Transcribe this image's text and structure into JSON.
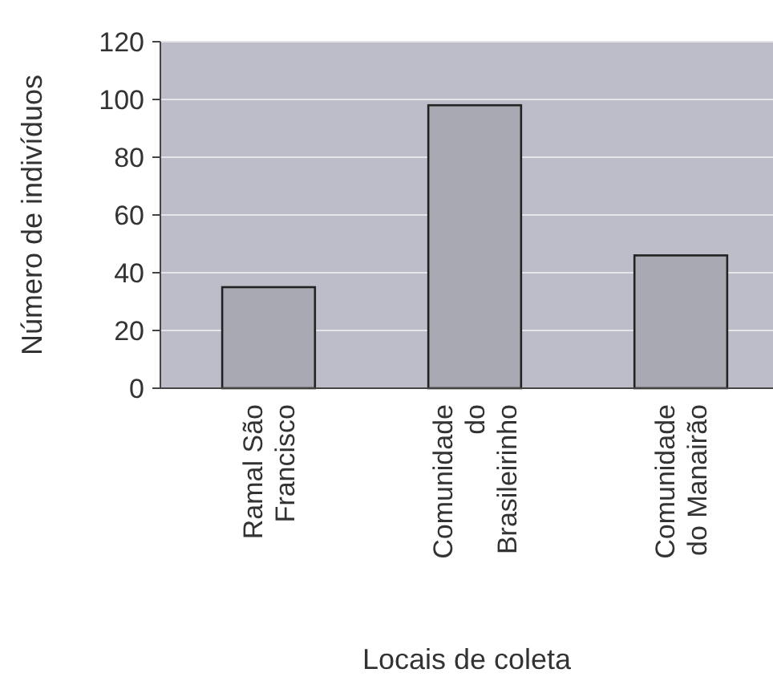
{
  "chart_data": {
    "type": "bar",
    "xlabel": "Locais de coleta",
    "ylabel": "Número de indivíduos",
    "categories": [
      "Ramal São\nFrancisco",
      "Comunidade\ndo\nBrasileirinho",
      "Comunidade\ndo Manairão"
    ],
    "values": [
      35,
      98,
      46
    ],
    "color": "#a9a9b3",
    "ylim": [
      0,
      120
    ],
    "yticks": [
      0,
      20,
      40,
      60,
      80,
      100,
      120
    ],
    "grid": "y"
  }
}
